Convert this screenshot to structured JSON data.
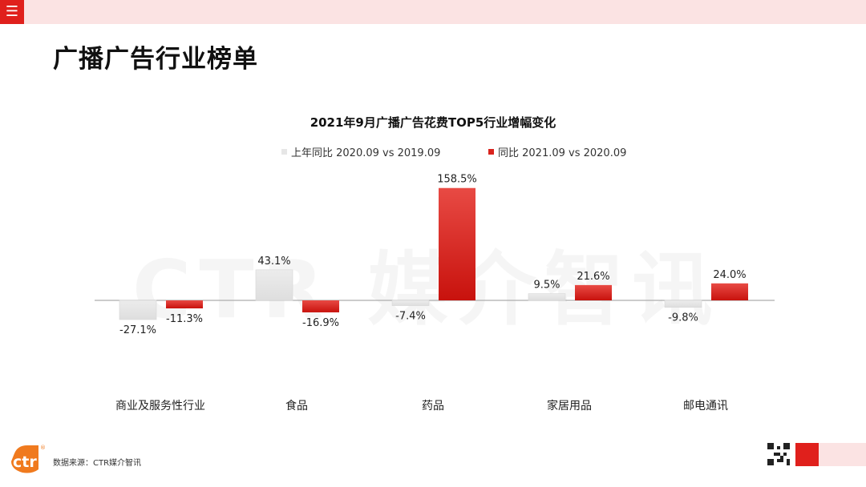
{
  "header": {
    "menu_icon": "hamburger-menu-icon"
  },
  "page_title": "广播广告行业榜单",
  "watermark": "CTR 媒介智讯",
  "colors": {
    "accent": "#e0201c",
    "series_prev": "#e6e6e6",
    "series_curr": "#d9231d",
    "band": "#fbe3e3"
  },
  "chart_data": {
    "type": "bar",
    "title": "2021年9月广播广告花费TOP5行业增幅变化",
    "categories": [
      "商业及服务性行业",
      "食品",
      "药品",
      "家居用品",
      "邮电通讯"
    ],
    "series": [
      {
        "name": "上年同比 2020.09 vs 2019.09",
        "values": [
          -27.1,
          43.1,
          -7.4,
          9.5,
          -9.8
        ],
        "labels": [
          "-27.1%",
          "43.1%",
          "-7.4%",
          "9.5%",
          "-9.8%"
        ]
      },
      {
        "name": "同比 2021.09 vs 2020.09",
        "values": [
          -11.3,
          -16.9,
          158.5,
          21.6,
          24.0
        ],
        "labels": [
          "-11.3%",
          "-16.9%",
          "158.5%",
          "21.6%",
          "24.0%"
        ]
      }
    ],
    "unit": "%",
    "ylim": [
      -30,
      160
    ],
    "legend_position": "top",
    "grid": false
  },
  "footer": {
    "source": "数据来源：CTR媒介智讯",
    "logo_text": "ctr",
    "logo_icon": "ctr-logo-icon",
    "qr_icon": "qr-code-icon"
  }
}
